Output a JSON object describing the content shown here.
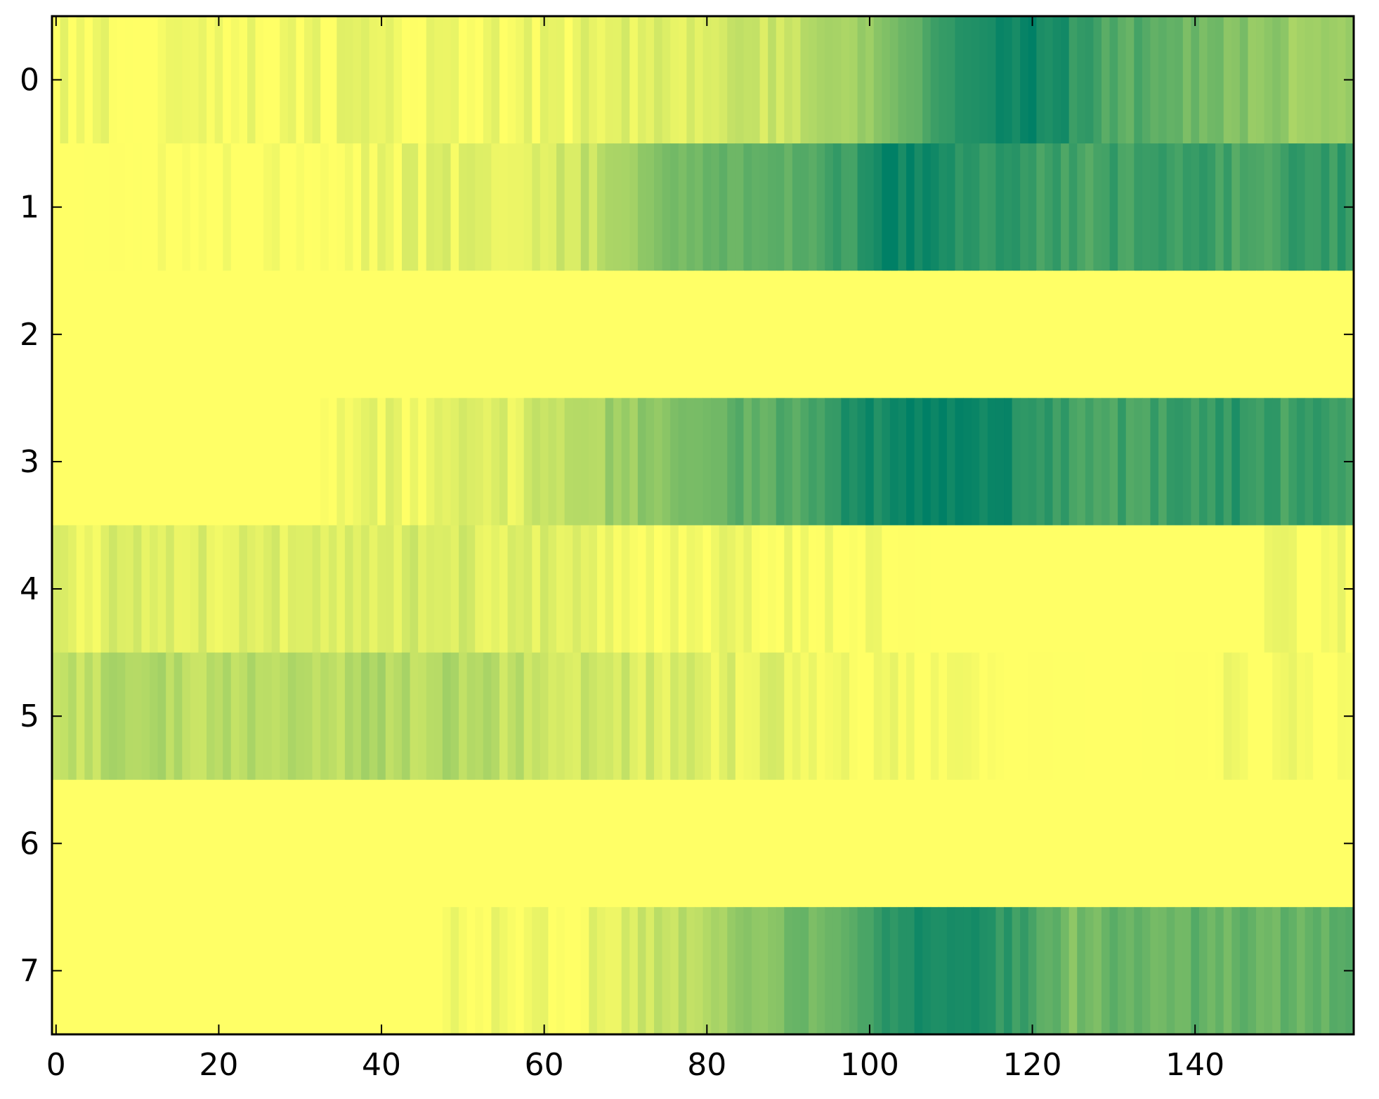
{
  "chart_data": {
    "type": "heatmap",
    "title": "",
    "xlabel": "",
    "ylabel": "",
    "colormap": "summer_r",
    "colormap_stops": [
      "#ffff66",
      "#008066"
    ],
    "value_range": [
      0,
      1
    ],
    "xlim": [
      -0.5,
      159.5
    ],
    "ylim": [
      7.5,
      -0.5
    ],
    "x_ticks": [
      0,
      20,
      40,
      60,
      80,
      100,
      120,
      140
    ],
    "x_tick_labels": [
      "0",
      "20",
      "40",
      "60",
      "80",
      "100",
      "120",
      "140"
    ],
    "y_ticks": [
      0,
      1,
      2,
      3,
      4,
      5,
      6,
      7
    ],
    "y_tick_labels": [
      "0",
      "1",
      "2",
      "3",
      "4",
      "5",
      "6",
      "7"
    ],
    "n_columns": 160,
    "row_profiles": [
      {
        "row": 0,
        "knots": [
          [
            0,
            0.06
          ],
          [
            20,
            0.03
          ],
          [
            35,
            0.06
          ],
          [
            55,
            0.04
          ],
          [
            75,
            0.12
          ],
          [
            85,
            0.18
          ],
          [
            95,
            0.3
          ],
          [
            105,
            0.52
          ],
          [
            110,
            0.8
          ],
          [
            115,
            0.92
          ],
          [
            122,
            0.95
          ],
          [
            128,
            0.72
          ],
          [
            135,
            0.62
          ],
          [
            142,
            0.55
          ],
          [
            150,
            0.42
          ],
          [
            159,
            0.35
          ]
        ]
      },
      {
        "row": 1,
        "knots": [
          [
            0,
            0.0
          ],
          [
            35,
            0.02
          ],
          [
            40,
            0.08
          ],
          [
            50,
            0.1
          ],
          [
            60,
            0.16
          ],
          [
            68,
            0.28
          ],
          [
            75,
            0.52
          ],
          [
            82,
            0.62
          ],
          [
            90,
            0.65
          ],
          [
            98,
            0.8
          ],
          [
            103,
            0.98
          ],
          [
            110,
            0.88
          ],
          [
            118,
            0.78
          ],
          [
            126,
            0.72
          ],
          [
            132,
            0.75
          ],
          [
            140,
            0.78
          ],
          [
            146,
            0.7
          ],
          [
            152,
            0.78
          ],
          [
            159,
            0.8
          ]
        ]
      },
      {
        "row": 2,
        "knots": [
          [
            0,
            0.0
          ],
          [
            159,
            0.0
          ]
        ]
      },
      {
        "row": 3,
        "knots": [
          [
            0,
            0.0
          ],
          [
            30,
            0.0
          ],
          [
            35,
            0.04
          ],
          [
            46,
            0.08
          ],
          [
            56,
            0.12
          ],
          [
            64,
            0.28
          ],
          [
            70,
            0.4
          ],
          [
            78,
            0.48
          ],
          [
            84,
            0.62
          ],
          [
            92,
            0.72
          ],
          [
            100,
            0.92
          ],
          [
            108,
            0.98
          ],
          [
            116,
            0.95
          ],
          [
            122,
            0.78
          ],
          [
            130,
            0.74
          ],
          [
            140,
            0.76
          ],
          [
            146,
            0.84
          ],
          [
            152,
            0.74
          ],
          [
            159,
            0.76
          ]
        ]
      },
      {
        "row": 4,
        "knots": [
          [
            0,
            0.1
          ],
          [
            10,
            0.12
          ],
          [
            30,
            0.12
          ],
          [
            40,
            0.16
          ],
          [
            50,
            0.14
          ],
          [
            60,
            0.12
          ],
          [
            70,
            0.08
          ],
          [
            80,
            0.06
          ],
          [
            90,
            0.04
          ],
          [
            98,
            0.01
          ],
          [
            110,
            0.0
          ],
          [
            148,
            0.0
          ],
          [
            152,
            0.05
          ],
          [
            159,
            0.02
          ]
        ]
      },
      {
        "row": 5,
        "knots": [
          [
            0,
            0.22
          ],
          [
            10,
            0.3
          ],
          [
            20,
            0.26
          ],
          [
            30,
            0.28
          ],
          [
            40,
            0.3
          ],
          [
            50,
            0.3
          ],
          [
            56,
            0.24
          ],
          [
            62,
            0.22
          ],
          [
            70,
            0.16
          ],
          [
            80,
            0.12
          ],
          [
            90,
            0.08
          ],
          [
            95,
            0.03
          ],
          [
            100,
            0.02
          ],
          [
            110,
            0.01
          ],
          [
            130,
            0.0
          ],
          [
            150,
            0.01
          ],
          [
            159,
            0.01
          ]
        ]
      },
      {
        "row": 6,
        "knots": [
          [
            0,
            0.0
          ],
          [
            159,
            0.0
          ]
        ]
      },
      {
        "row": 7,
        "knots": [
          [
            0,
            0.0
          ],
          [
            47,
            0.0
          ],
          [
            52,
            0.03
          ],
          [
            64,
            0.03
          ],
          [
            68,
            0.12
          ],
          [
            75,
            0.22
          ],
          [
            80,
            0.34
          ],
          [
            85,
            0.48
          ],
          [
            92,
            0.54
          ],
          [
            98,
            0.66
          ],
          [
            104,
            0.84
          ],
          [
            110,
            0.9
          ],
          [
            116,
            0.84
          ],
          [
            120,
            0.7
          ],
          [
            125,
            0.52
          ],
          [
            132,
            0.6
          ],
          [
            140,
            0.6
          ],
          [
            150,
            0.6
          ],
          [
            159,
            0.62
          ]
        ]
      }
    ]
  }
}
